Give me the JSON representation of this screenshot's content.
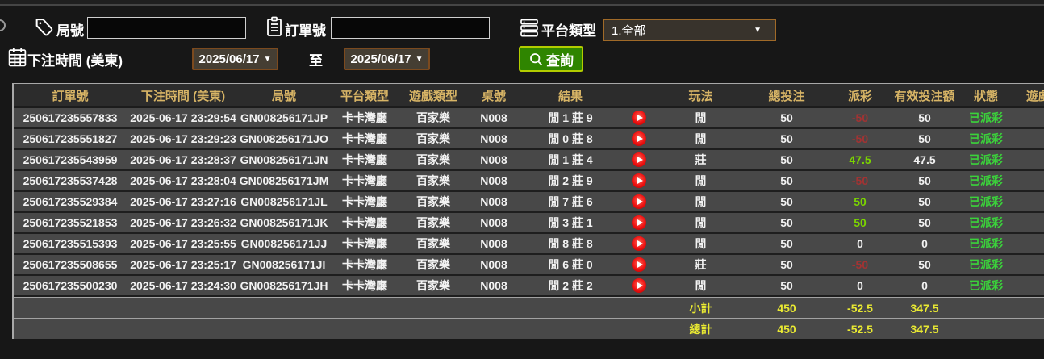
{
  "filters": {
    "game_no_label": "局號",
    "game_no_value": "",
    "order_no_label": "訂單號",
    "order_no_value": "",
    "platform_label": "平台類型",
    "platform_value": "1.全部",
    "bet_time_label": "下注時間 (美東)",
    "date_from": "2025/06/17",
    "to_label": "至",
    "date_to": "2025/06/17",
    "search_label": "查詢"
  },
  "colors": {
    "header_gold": "#d8b566",
    "summary_yellow": "#e9e932",
    "payout_positive_green": "#7bd400",
    "payout_negative_red": "#a23333",
    "status_green": "#3bd23b",
    "search_button_green": "#2f8500",
    "search_button_border": "#b2cc00",
    "date_border_orange": "#7c4a1e",
    "platform_border_orange": "#a06a28",
    "row_bg": "#484848",
    "header_bg": "#2c2c2c"
  },
  "table": {
    "headers": [
      "訂單號",
      "下注時間 (美東)",
      "局號",
      "平台類型",
      "遊戲類型",
      "桌號",
      "結果",
      "",
      "玩法",
      "總投注",
      "派彩",
      "有效投注額",
      "狀態",
      "遊戲"
    ],
    "rows": [
      {
        "order": "250617235557833",
        "time": "2025-06-17 23:29:54",
        "game_no": "GN008256171JP",
        "platform": "卡卡灣廳",
        "game_type": "百家樂",
        "table_no": "N008",
        "result": "閒 1 莊 9",
        "play_icon": "play-icon",
        "bet_type": "閒",
        "total_bet": "50",
        "payout": "-50",
        "valid_bet": "50",
        "status": "已派彩"
      },
      {
        "order": "250617235551827",
        "time": "2025-06-17 23:29:23",
        "game_no": "GN008256171JO",
        "platform": "卡卡灣廳",
        "game_type": "百家樂",
        "table_no": "N008",
        "result": "閒 0 莊 8",
        "play_icon": "play-icon",
        "bet_type": "閒",
        "total_bet": "50",
        "payout": "-50",
        "valid_bet": "50",
        "status": "已派彩"
      },
      {
        "order": "250617235543959",
        "time": "2025-06-17 23:28:37",
        "game_no": "GN008256171JN",
        "platform": "卡卡灣廳",
        "game_type": "百家樂",
        "table_no": "N008",
        "result": "閒 1 莊 4",
        "play_icon": "play-icon",
        "bet_type": "莊",
        "total_bet": "50",
        "payout": "47.5",
        "valid_bet": "47.5",
        "status": "已派彩"
      },
      {
        "order": "250617235537428",
        "time": "2025-06-17 23:28:04",
        "game_no": "GN008256171JM",
        "platform": "卡卡灣廳",
        "game_type": "百家樂",
        "table_no": "N008",
        "result": "閒 2 莊 9",
        "play_icon": "play-icon",
        "bet_type": "閒",
        "total_bet": "50",
        "payout": "-50",
        "valid_bet": "50",
        "status": "已派彩"
      },
      {
        "order": "250617235529384",
        "time": "2025-06-17 23:27:16",
        "game_no": "GN008256171JL",
        "platform": "卡卡灣廳",
        "game_type": "百家樂",
        "table_no": "N008",
        "result": "閒 7 莊 6",
        "play_icon": "play-icon",
        "bet_type": "閒",
        "total_bet": "50",
        "payout": "50",
        "valid_bet": "50",
        "status": "已派彩"
      },
      {
        "order": "250617235521853",
        "time": "2025-06-17 23:26:32",
        "game_no": "GN008256171JK",
        "platform": "卡卡灣廳",
        "game_type": "百家樂",
        "table_no": "N008",
        "result": "閒 3 莊 1",
        "play_icon": "play-icon",
        "bet_type": "閒",
        "total_bet": "50",
        "payout": "50",
        "valid_bet": "50",
        "status": "已派彩"
      },
      {
        "order": "250617235515393",
        "time": "2025-06-17 23:25:55",
        "game_no": "GN008256171JJ",
        "platform": "卡卡灣廳",
        "game_type": "百家樂",
        "table_no": "N008",
        "result": "閒 8 莊 8",
        "play_icon": "play-icon",
        "bet_type": "閒",
        "total_bet": "50",
        "payout": "0",
        "valid_bet": "0",
        "status": "已派彩"
      },
      {
        "order": "250617235508655",
        "time": "2025-06-17 23:25:17",
        "game_no": "GN008256171JI",
        "platform": "卡卡灣廳",
        "game_type": "百家樂",
        "table_no": "N008",
        "result": "閒 6 莊 0",
        "play_icon": "play-icon",
        "bet_type": "莊",
        "total_bet": "50",
        "payout": "-50",
        "valid_bet": "50",
        "status": "已派彩"
      },
      {
        "order": "250617235500230",
        "time": "2025-06-17 23:24:30",
        "game_no": "GN008256171JH",
        "platform": "卡卡灣廳",
        "game_type": "百家樂",
        "table_no": "N008",
        "result": "閒 2 莊 2",
        "play_icon": "play-icon",
        "bet_type": "閒",
        "total_bet": "50",
        "payout": "0",
        "valid_bet": "0",
        "status": "已派彩"
      }
    ],
    "summary": [
      {
        "label": "小計",
        "total_bet": "450",
        "payout": "-52.5",
        "valid_bet": "347.5"
      },
      {
        "label": "總計",
        "total_bet": "450",
        "payout": "-52.5",
        "valid_bet": "347.5"
      }
    ]
  }
}
